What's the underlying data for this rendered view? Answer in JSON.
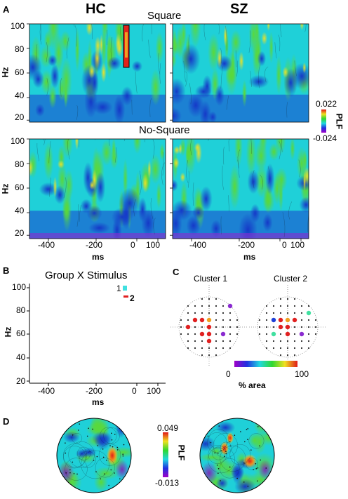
{
  "panels": {
    "A": {
      "letter": "A",
      "groups": [
        "HC",
        "SZ"
      ],
      "conditions": [
        "Square",
        "No-Square"
      ],
      "y_label": "Hz",
      "x_label": "ms",
      "y_ticks": [
        "100",
        "80",
        "60",
        "40",
        "20"
      ],
      "x_ticks": [
        "-400",
        "-200",
        "0",
        "100"
      ],
      "colorbar": {
        "max": "0.022",
        "min": "-0.024",
        "label": "PLF"
      }
    },
    "B": {
      "letter": "B",
      "title": "Group X Stimulus",
      "y_label": "Hz",
      "x_label": "ms",
      "y_ticks": [
        "100",
        "80",
        "60",
        "40",
        "20"
      ],
      "x_ticks": [
        "-400",
        "-200",
        "0",
        "100"
      ],
      "cluster_labels": [
        "1",
        "2"
      ]
    },
    "C": {
      "letter": "C",
      "titles": [
        "Cluster 1",
        "Cluster 2"
      ],
      "colorbar": {
        "min": "0",
        "max": "100",
        "label": "% area"
      }
    },
    "D": {
      "letter": "D",
      "colorbar": {
        "max": "0.049",
        "min": "-0.013",
        "label": "PLF"
      }
    }
  },
  "colors": {
    "map_base": "#1fd0d8",
    "map_low": "#1a3fd0",
    "map_high": "#f2d21a",
    "map_peak": "#e2231a"
  }
}
